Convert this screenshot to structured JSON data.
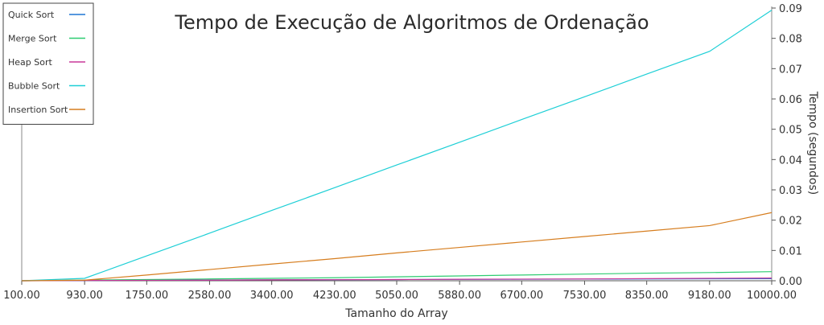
{
  "chart_data": {
    "type": "line",
    "title": "Tempo de Execução de Algoritmos de Ordenação",
    "xlabel": "Tamanho do Array",
    "ylabel": "Tempo (segundos)",
    "x": [
      100,
      930,
      1750,
      2580,
      3400,
      4230,
      5050,
      5880,
      6700,
      7530,
      8350,
      9180,
      10000
    ],
    "x_tick_labels": [
      "100.00",
      "930.00",
      "1750.00",
      "2580.00",
      "3400.00",
      "4230.00",
      "5050.00",
      "5880.00",
      "6700.00",
      "7530.00",
      "8350.00",
      "9180.00",
      "10000.00"
    ],
    "y_ticks": [
      0,
      0.01,
      0.02,
      0.03,
      0.04,
      0.05,
      0.06,
      0.07,
      0.08,
      0.09
    ],
    "y_tick_labels": [
      "0.00",
      "0.01",
      "0.02",
      "0.03",
      "0.04",
      "0.05",
      "0.06",
      "0.07",
      "0.08",
      "0.09"
    ],
    "xlim": [
      100,
      10000
    ],
    "ylim": [
      0,
      0.09
    ],
    "y_axis_side": "right",
    "grid": false,
    "legend_position": "top-left",
    "series": [
      {
        "name": "Quick Sort",
        "color": "#1f77d4",
        "values": [
          0.0,
          0.0001,
          0.0002,
          0.00025,
          0.0003,
          0.00035,
          0.0004,
          0.00045,
          0.0005,
          0.00055,
          0.0006,
          0.00065,
          0.0007
        ]
      },
      {
        "name": "Merge Sort",
        "color": "#2ecc71",
        "values": [
          0.0,
          0.0002,
          0.0004,
          0.0006,
          0.0008,
          0.001,
          0.0013,
          0.0016,
          0.0019,
          0.0022,
          0.0025,
          0.0027,
          0.003
        ]
      },
      {
        "name": "Heap Sort",
        "color": "#c9389a",
        "values": [
          0.0,
          0.0001,
          0.00015,
          0.0002,
          0.0003,
          0.00035,
          0.0004,
          0.0005,
          0.00055,
          0.0006,
          0.0007,
          0.0008,
          0.0009
        ]
      },
      {
        "name": "Bubble Sort",
        "color": "#1ecfd6",
        "values": [
          0.0,
          0.0008,
          0.0082,
          0.0157,
          0.0232,
          0.0307,
          0.0382,
          0.0457,
          0.0532,
          0.0607,
          0.0682,
          0.0757,
          0.0893
        ]
      },
      {
        "name": "Insertion Sort",
        "color": "#d67d1e",
        "values": [
          0.0,
          0.0002,
          0.0019,
          0.0037,
          0.0055,
          0.0073,
          0.0092,
          0.011,
          0.0128,
          0.0146,
          0.0164,
          0.0182,
          0.0225
        ]
      }
    ]
  }
}
